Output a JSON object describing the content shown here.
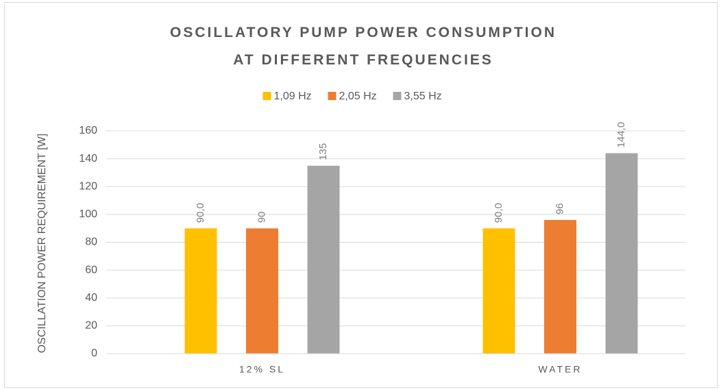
{
  "chart_data": {
    "type": "bar",
    "title": "OSCILLATORY PUMP POWER CONSUMPTION AT DIFFERENT FREQUENCIES",
    "y_label": "OSCILLATION POWER REQUIREMENT [W]",
    "categories": [
      "12% SL",
      "WATER"
    ],
    "series": [
      {
        "name": "1,09 Hz",
        "color": "#ffc000",
        "values": [
          90,
          90
        ],
        "value_labels": [
          "90,0",
          "90,0"
        ]
      },
      {
        "name": "2,05 Hz",
        "color": "#ed7d31",
        "values": [
          90,
          96
        ],
        "value_labels": [
          "90",
          "96"
        ]
      },
      {
        "name": "3,55 Hz",
        "color": "#a5a5a5",
        "values": [
          135,
          144
        ],
        "value_labels": [
          "135",
          "144,0"
        ]
      }
    ],
    "ylim": [
      0,
      160
    ],
    "yticks": [
      0,
      20,
      40,
      60,
      80,
      100,
      120,
      140,
      160
    ],
    "grid": true,
    "legend": "top"
  }
}
